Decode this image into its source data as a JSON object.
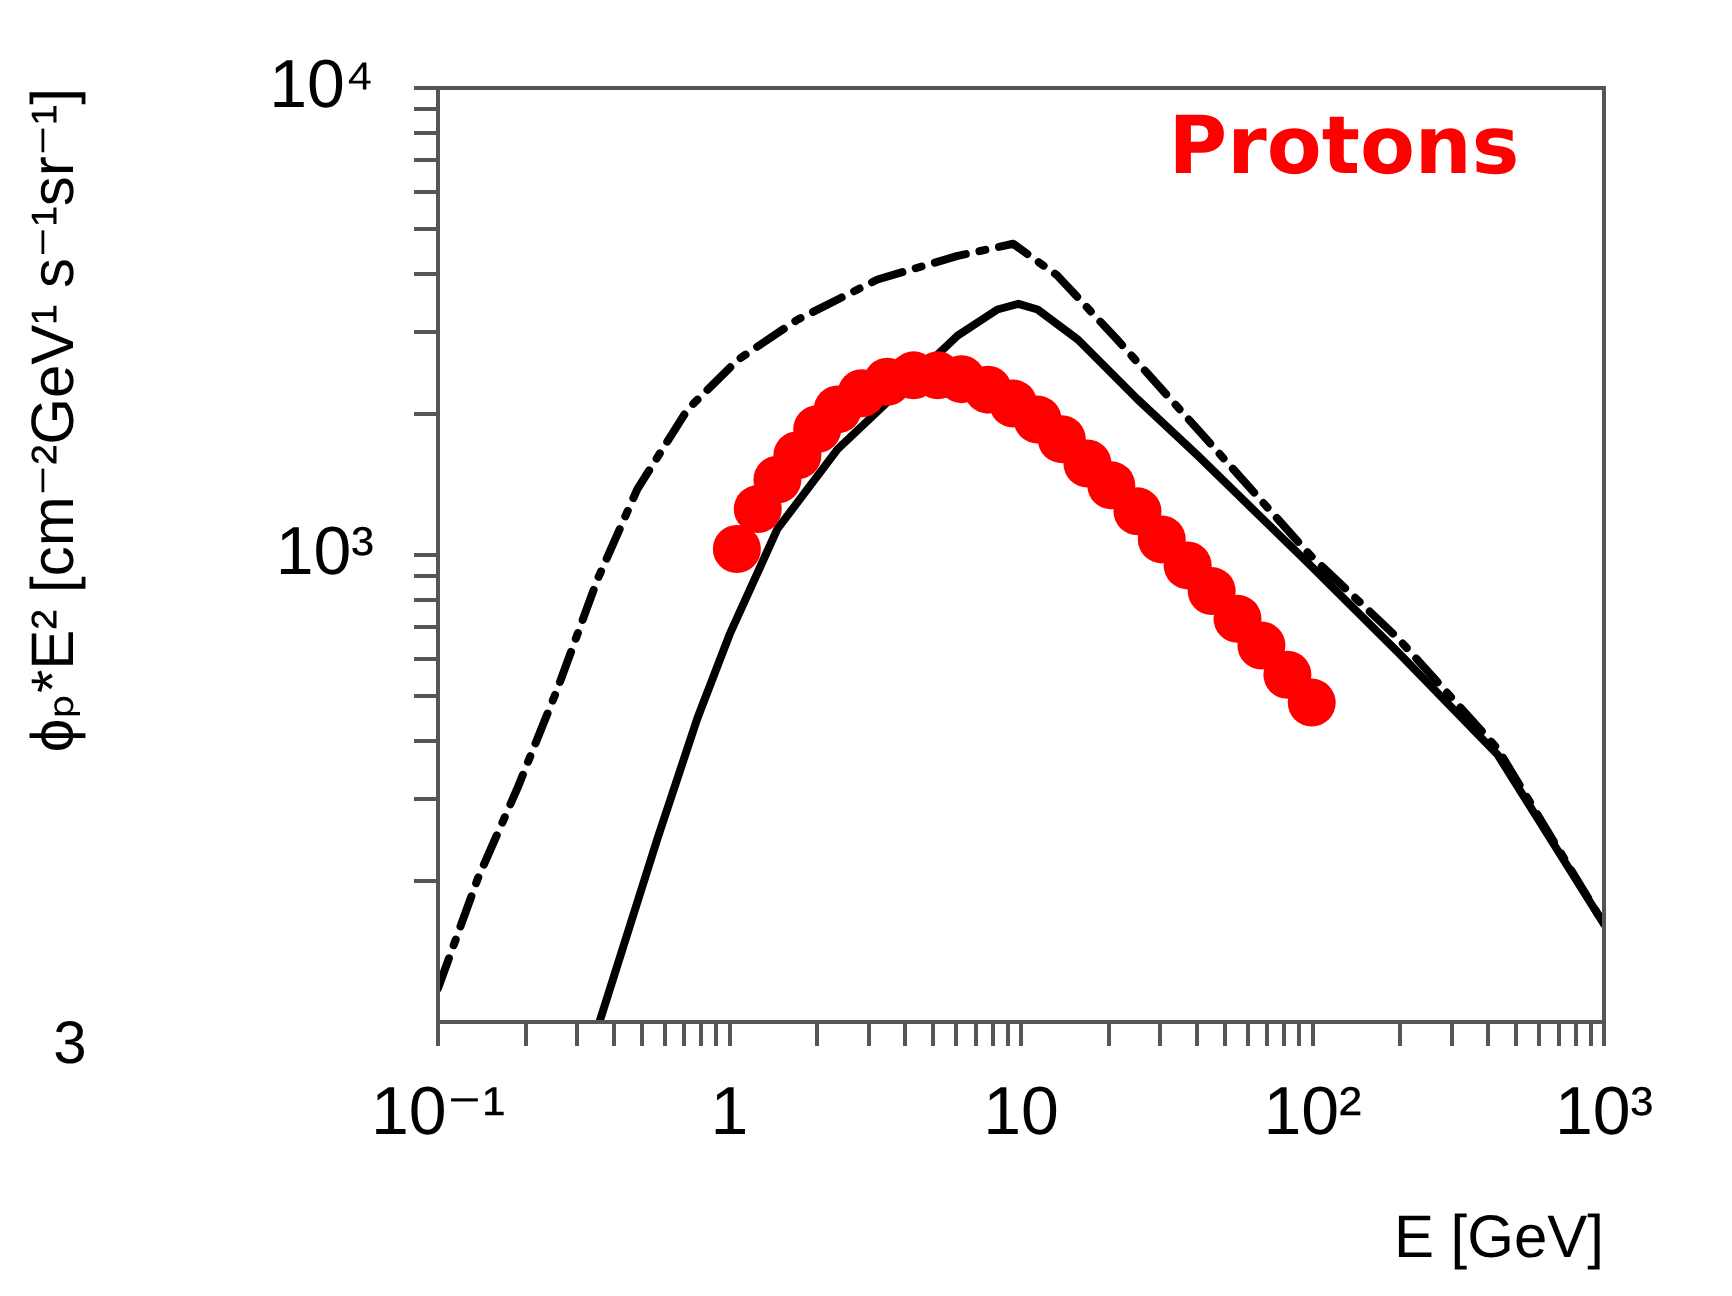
{
  "chart_data": {
    "type": "line",
    "xlabel": "E [GeV]",
    "ylabel": "ϕₚ*E² [cm⁻²GeV¹ s⁻¹sr⁻¹]",
    "annotations": [
      "Protons",
      "3"
    ],
    "log": "xy",
    "grid": false,
    "legend": false,
    "xlim": [
      0.1,
      1000
    ],
    "xticks": [
      {
        "value": 0.1,
        "label": "10⁻¹"
      },
      {
        "value": 0.2,
        "label": null
      },
      {
        "value": 0.3,
        "label": null
      },
      {
        "value": 0.4,
        "label": null
      },
      {
        "value": 0.5,
        "label": null
      },
      {
        "value": 0.6,
        "label": null
      },
      {
        "value": 0.7,
        "label": null
      },
      {
        "value": 0.8,
        "label": null
      },
      {
        "value": 0.9,
        "label": null
      },
      1,
      {
        "value": 2,
        "label": null
      },
      {
        "value": 3,
        "label": null
      },
      {
        "value": 4,
        "label": null
      },
      {
        "value": 5,
        "label": null
      },
      {
        "value": 6,
        "label": null
      },
      {
        "value": 7,
        "label": null
      },
      {
        "value": 8,
        "label": null
      },
      {
        "value": 9,
        "label": null
      },
      10,
      {
        "value": 20,
        "label": null
      },
      {
        "value": 30,
        "label": null
      },
      {
        "value": 40,
        "label": null
      },
      {
        "value": 50,
        "label": null
      },
      {
        "value": 60,
        "label": null
      },
      {
        "value": 70,
        "label": null
      },
      {
        "value": 80,
        "label": null
      },
      {
        "value": 90,
        "label": null
      },
      {
        "value": 100,
        "label": "10²"
      },
      {
        "value": 200,
        "label": null
      },
      {
        "value": 300,
        "label": null
      },
      {
        "value": 400,
        "label": null
      },
      {
        "value": 500,
        "label": null
      },
      {
        "value": 600,
        "label": null
      },
      {
        "value": 700,
        "label": null
      },
      {
        "value": 800,
        "label": null
      },
      {
        "value": 900,
        "label": null
      },
      {
        "value": 1000,
        "label": "10³"
      }
    ],
    "ylim": [
      100,
      10000
    ],
    "yticks": [
      {
        "value": 200,
        "label": null
      },
      {
        "value": 300,
        "label": null
      },
      {
        "value": 400,
        "label": null
      },
      {
        "value": 500,
        "label": null
      },
      {
        "value": 600,
        "label": null
      },
      {
        "value": 700,
        "label": null
      },
      {
        "value": 800,
        "label": null
      },
      {
        "value": 900,
        "label": null
      },
      {
        "value": 1000,
        "label": "10³"
      },
      {
        "value": 2000,
        "label": null
      },
      {
        "value": 3000,
        "label": null
      },
      {
        "value": 4000,
        "label": null
      },
      {
        "value": 5000,
        "label": null
      },
      {
        "value": 6000,
        "label": null
      },
      {
        "value": 7000,
        "label": null
      },
      {
        "value": 8000,
        "label": null
      },
      {
        "value": 9000,
        "label": null
      },
      {
        "value": 10000,
        "label": "10⁴"
      }
    ],
    "series": [
      {
        "color": "#000000",
        "line_style": "dashed",
        "marker": "none",
        "x": [
          0.1,
          0.137,
          0.187,
          0.257,
          0.353,
          0.483,
          0.718,
          1.07,
          1.71,
          3.22,
          6.06,
          9.4,
          13.3,
          21.4,
          40.3,
          98,
          197,
          431,
          1000
        ],
        "values": [
          118,
          203,
          316,
          517,
          889,
          1384,
          2050,
          2620,
          3190,
          3890,
          4370,
          4640,
          3970,
          2890,
          1860,
          1000,
          662,
          385,
          162
        ]
      },
      {
        "color": "#000000",
        "line_style": "solid",
        "marker": "none",
        "x": [
          0.358,
          0.566,
          0.776,
          1,
          1.46,
          2.35,
          3.77,
          6.06,
          8.3,
          9.8,
          11.4,
          15.7,
          25.1,
          40.3,
          98,
          197,
          431,
          1000
        ],
        "values": [
          100,
          247,
          447,
          675,
          1137,
          1685,
          null,
          2950,
          3355,
          3450,
          3355,
          2890,
          2155,
          1635,
          952,
          618,
          374,
          162
        ]
      },
      {
        "type": "scatter",
        "color": "#ff0000",
        "marker": "circle",
        "x": [
          1.06,
          1.25,
          1.46,
          1.71,
          2.0,
          2.35,
          2.84,
          3.48,
          4.28,
          5.18,
          6.25,
          7.7,
          9.4,
          11.4,
          13.8,
          16.9,
          20.4,
          25.1,
          30.4,
          37.3,
          45.1,
          55.3,
          66.8,
          82.0,
          99.4
        ],
        "values": [
          1030,
          1254,
          1450,
          1635,
          1860,
          2050,
          2220,
          2350,
          2425,
          2425,
          2380,
          2260,
          2110,
          1950,
          1770,
          1570,
          1410,
          1240,
          1080,
          950,
          837,
          730,
          640,
          554,
          483
        ]
      }
    ]
  }
}
